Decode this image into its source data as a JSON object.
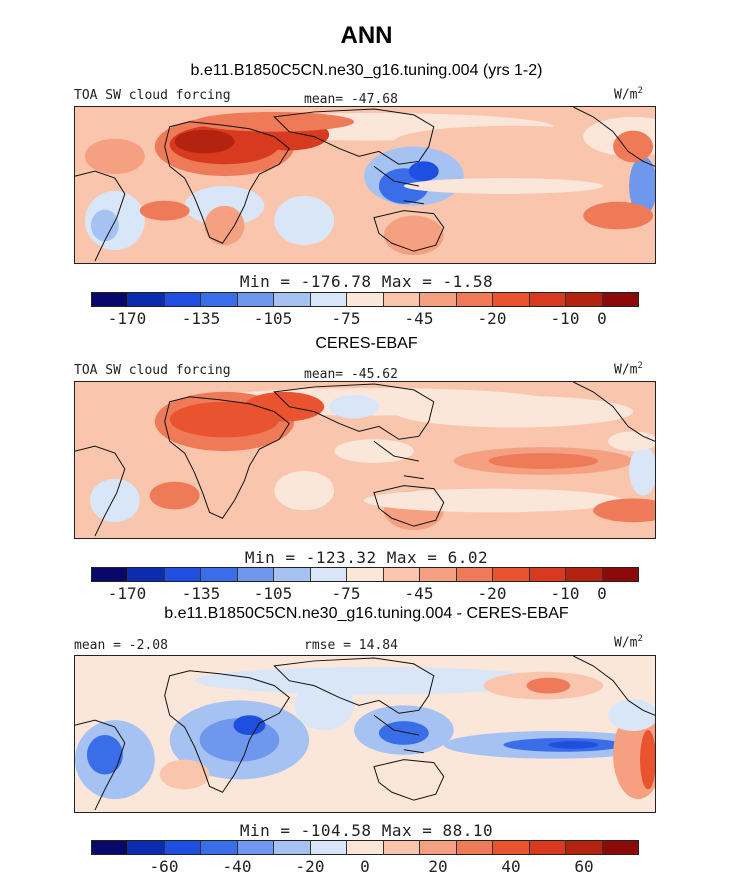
{
  "figure": {
    "title": "ANN",
    "case_title": "b.e11.B1850C5CN.ne30_g16.tuning.004 (yrs 1-2)",
    "obs_title": "CERES-EBAF",
    "diff_title": "b.e11.B1850C5CN.ne30_g16.tuning.004 - CERES-EBAF"
  },
  "panels": [
    {
      "variable": "TOA SW cloud forcing",
      "stat": "mean= -47.68",
      "units": "W/m",
      "units_exp": "2",
      "minmax": "Min = -176.78 Max =  -1.58",
      "tick_labels": [
        "-170",
        "-135",
        "-105",
        "-75",
        "-45",
        "-20",
        "-10",
        "0"
      ]
    },
    {
      "variable": "TOA SW cloud forcing",
      "stat": "mean= -45.62",
      "units": "W/m",
      "units_exp": "2",
      "minmax": "Min = -123.32 Max =   6.02",
      "tick_labels": [
        "-170",
        "-135",
        "-105",
        "-75",
        "-45",
        "-20",
        "-10",
        "0"
      ]
    },
    {
      "stat_left": "mean = -2.08",
      "stat": "rmse = 14.84",
      "units": "W/m",
      "units_exp": "2",
      "minmax": "Min = -104.58 Max =  88.10",
      "tick_labels": [
        "-60",
        "-40",
        "-20",
        "0",
        "20",
        "40",
        "60"
      ]
    }
  ],
  "colors": {
    "scale": [
      "#08086b",
      "#0b2bb0",
      "#1e4fe0",
      "#3a6ee8",
      "#6f97ee",
      "#a6c2f2",
      "#d8e6f8",
      "#fbe6da",
      "#f9c5ad",
      "#f4a081",
      "#ee7a58",
      "#e9532f",
      "#d73a1e",
      "#b4230f",
      "#8c0a0a"
    ],
    "land_outline": "#111111"
  }
}
